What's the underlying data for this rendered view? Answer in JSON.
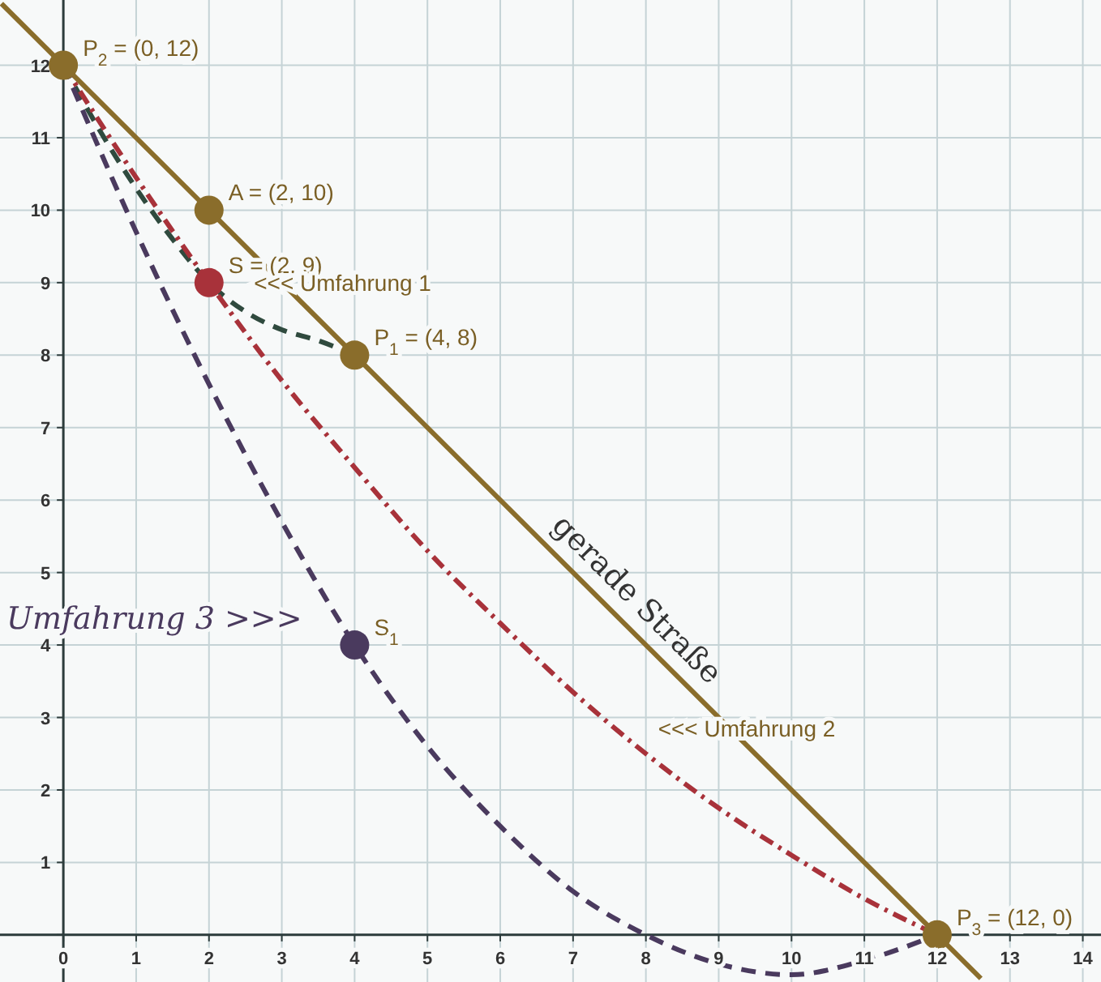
{
  "chart_data": {
    "type": "line",
    "xlim": [
      -0.87,
      14.25
    ],
    "ylim": [
      -0.65,
      12.9
    ],
    "xticks": [
      0,
      1,
      2,
      3,
      4,
      5,
      6,
      7,
      8,
      9,
      10,
      11,
      12,
      13,
      14
    ],
    "yticks": [
      {
        "value": 0,
        "label": null
      },
      1,
      2,
      3,
      4,
      5,
      6,
      7,
      8,
      9,
      10,
      11,
      12
    ],
    "grid": true,
    "marker": "none",
    "series": [
      {
        "name": "gerade Straße",
        "color": "#8a6d2b",
        "line_style": "solid",
        "x": [
          -0.85,
          12.6
        ],
        "values": [
          12.85,
          -0.6
        ]
      },
      {
        "color": "#2f4a3e",
        "line_style": "dashed",
        "x": [
          0,
          0.5,
          1,
          1.5,
          2,
          2.5,
          3,
          3.5,
          4
        ],
        "values": [
          12,
          11.1,
          10.3,
          9.6,
          9,
          8.6,
          8.35,
          8.2,
          8
        ]
      },
      {
        "color": "#a8323a",
        "line_style": "dashdot",
        "x": [
          0,
          1,
          2,
          3,
          4,
          5,
          6,
          7,
          8,
          9,
          10,
          11,
          12
        ],
        "values": [
          12,
          10.45,
          9,
          7.65,
          6.45,
          5.3,
          4.3,
          3.35,
          2.5,
          1.75,
          1.1,
          0.5,
          0
        ]
      },
      {
        "color": "#4a3a5e",
        "line_style": "dashed",
        "x": [
          0,
          1,
          2,
          3,
          4,
          5,
          6,
          7,
          8,
          9,
          10,
          11,
          12
        ],
        "values": [
          12,
          9.7,
          7.6,
          5.7,
          4,
          2.6,
          1.5,
          0.6,
          0,
          -0.4,
          -0.55,
          -0.35,
          0
        ]
      },
      {
        "type": "scatter",
        "marker": "circle",
        "color": "#8a6d2b",
        "x": [
          0,
          2,
          4,
          12
        ],
        "values": [
          12,
          10,
          8,
          0
        ]
      },
      {
        "type": "scatter",
        "marker": "circle",
        "color": "#a8323a",
        "x": [
          2
        ],
        "values": [
          9
        ]
      },
      {
        "type": "scatter",
        "marker": "circle",
        "color": "#4a3a5e",
        "x": [
          4
        ],
        "values": [
          4
        ]
      }
    ],
    "annotations": [
      {
        "text": "P$_{2}$ = (0, 12)",
        "x": 0,
        "y": 12
      },
      {
        "text": "A = (2, 10)",
        "x": 2,
        "y": 10
      },
      {
        "text": "S = (2, 9)",
        "x": 2,
        "y": 9
      },
      {
        "text": "P$_{1}$ = (4, 8)",
        "x": 4,
        "y": 8
      },
      {
        "text": "P$_{3}$ = (12, 0)",
        "x": 12,
        "y": 0
      },
      {
        "text": "S$_{1}$",
        "x": 4,
        "y": 4
      },
      {
        "text": "<<< Umfahrung 1",
        "x": 2.35,
        "y": 8.75
      },
      {
        "text": "<<< Umfahrung 2",
        "x": 7.9,
        "y": 2.6
      },
      "Umfahrung 3 >>>"
    ]
  }
}
